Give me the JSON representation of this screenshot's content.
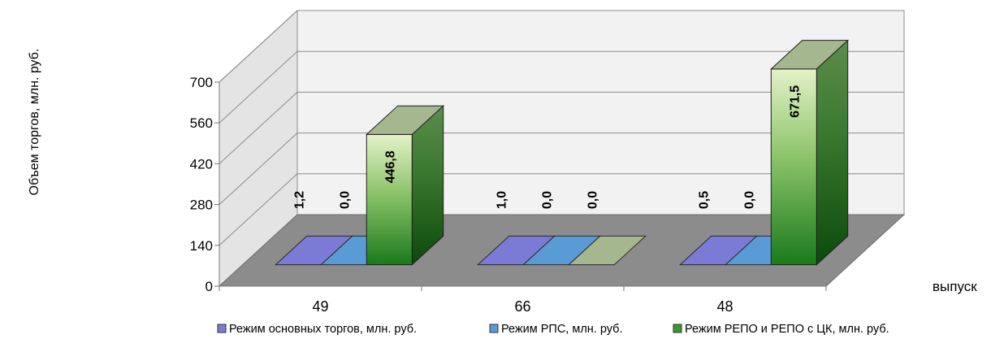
{
  "chart_data": {
    "type": "bar",
    "title": "",
    "ylabel": "Объем торгов, млн. руб.",
    "xlabel": "выпуск",
    "categories": [
      "49",
      "66",
      "48"
    ],
    "ylim": [
      0,
      700
    ],
    "yticks": [
      0,
      140,
      280,
      420,
      560,
      700
    ],
    "grid": true,
    "legend_position": "bottom",
    "series": [
      {
        "name": "Режим основных торгов, млн. руб.",
        "values": [
          1.2,
          1.0,
          0.5
        ],
        "labels": [
          "1,2",
          "1,0",
          "0,5"
        ],
        "color": "#7b7bd6"
      },
      {
        "name": "Режим РПС, млн. руб.",
        "values": [
          0.0,
          0.0,
          0.0
        ],
        "labels": [
          "0,0",
          "0,0",
          "0,0"
        ],
        "color": "#5b9bd5"
      },
      {
        "name": "Режим РЕПО и РЕПО с ЦК, млн. руб.",
        "values": [
          446.8,
          0.0,
          671.5
        ],
        "labels": [
          "446,8",
          "0,0",
          "671,5"
        ],
        "color": "#3a9a2a"
      }
    ]
  }
}
